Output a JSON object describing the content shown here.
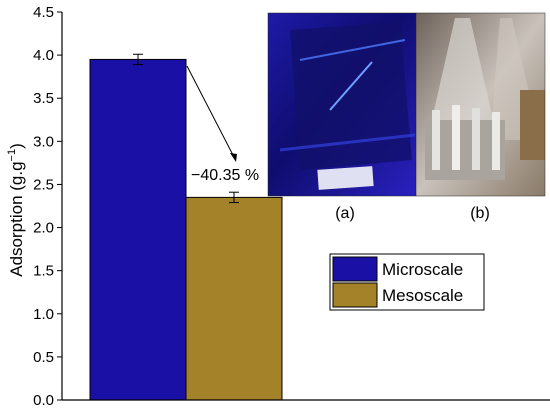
{
  "chart_data": {
    "type": "bar",
    "categories": [
      "Microscale",
      "Mesoscale"
    ],
    "values": [
      3.95,
      2.35
    ],
    "errors": [
      0.06,
      0.06
    ],
    "colors": [
      "#1a10a6",
      "#a3822a"
    ],
    "ylabel": "Adsorption  (g.g",
    "ylabel_sup": "−1",
    "ylabel_end": ")",
    "ylim": [
      0.0,
      4.5
    ],
    "yticks": [
      "0.0",
      "0.5",
      "1.0",
      "1.5",
      "2.0",
      "2.5",
      "3.0",
      "3.5",
      "4.0",
      "4.5"
    ],
    "annotation": "−40.35 %",
    "legend": {
      "placement": "center-right",
      "entries": [
        {
          "label": "Microscale",
          "color": "#1a10a6"
        },
        {
          "label": "Mesoscale",
          "color": "#a3822a"
        }
      ]
    },
    "inset_photos": [
      {
        "label": "(a)",
        "subject": "blue-lit adsorption setup"
      },
      {
        "label": "(b)",
        "subject": "glass flasks with metal fins"
      }
    ]
  }
}
